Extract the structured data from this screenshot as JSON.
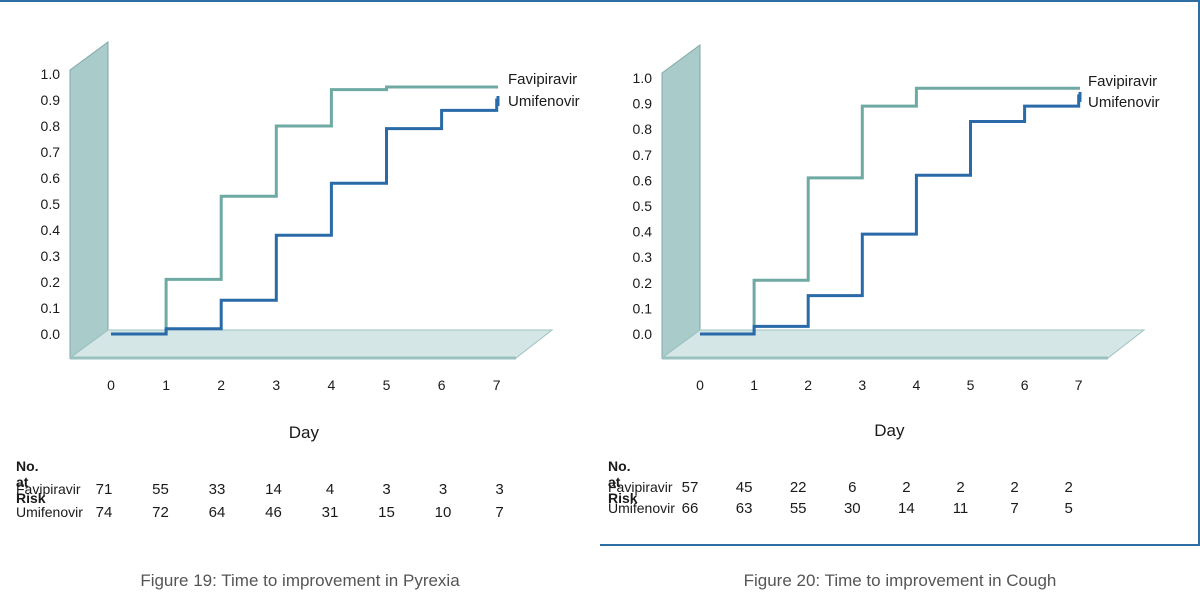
{
  "colors": {
    "favipiravir": "#6fa9a3",
    "umifenovir": "#2a6aa8",
    "wall": "#a9cbca",
    "floor": "#d4e6e6",
    "frame": "#2f6ea3"
  },
  "chart_data": [
    {
      "type": "line",
      "step": true,
      "caption": "Figure 19: Time to improvement in Pyrexia",
      "xlabel": "Day",
      "x_ticks": [
        "0",
        "1",
        "2",
        "3",
        "4",
        "5",
        "6",
        "7"
      ],
      "y_ticks": [
        "0.0",
        "0.1",
        "0.2",
        "0.3",
        "0.4",
        "0.5",
        "0.6",
        "0.7",
        "0.8",
        "0.9",
        "1.0"
      ],
      "xlim": [
        0,
        7
      ],
      "ylim": [
        0,
        1.0
      ],
      "series": [
        {
          "name": "Favipiravir",
          "x": [
            0,
            1,
            2,
            3,
            4,
            5,
            6,
            7
          ],
          "y": [
            0,
            0.21,
            0.53,
            0.8,
            0.94,
            0.95,
            0.95,
            0.95
          ]
        },
        {
          "name": "Umifenovir",
          "x": [
            0,
            1,
            2,
            3,
            4,
            5,
            6,
            7
          ],
          "y": [
            0,
            0.02,
            0.13,
            0.38,
            0.58,
            0.79,
            0.86,
            0.9
          ]
        }
      ],
      "risk_table": {
        "title": "No. at Risk",
        "rows": [
          {
            "name": "Favipiravir",
            "values": [
              "71",
              "55",
              "33",
              "14",
              "4",
              "3",
              "3",
              "3"
            ]
          },
          {
            "name": "Umifenovir",
            "values": [
              "74",
              "72",
              "64",
              "46",
              "31",
              "15",
              "10",
              "7"
            ]
          }
        ]
      }
    },
    {
      "type": "line",
      "step": true,
      "caption": "Figure 20: Time to improvement in Cough",
      "xlabel": "Day",
      "x_ticks": [
        "0",
        "1",
        "2",
        "3",
        "4",
        "5",
        "6",
        "7"
      ],
      "y_ticks": [
        "0.0",
        "0.1",
        "0.2",
        "0.3",
        "0.4",
        "0.5",
        "0.6",
        "0.7",
        "0.8",
        "0.9",
        "1.0"
      ],
      "xlim": [
        0,
        7
      ],
      "ylim": [
        0,
        1.0
      ],
      "series": [
        {
          "name": "Favipiravir",
          "x": [
            0,
            1,
            2,
            3,
            4,
            5,
            6,
            7
          ],
          "y": [
            0,
            0.21,
            0.61,
            0.89,
            0.96,
            0.96,
            0.96,
            0.96
          ]
        },
        {
          "name": "Umifenovir",
          "x": [
            0,
            1,
            2,
            3,
            4,
            5,
            6,
            7
          ],
          "y": [
            0,
            0.03,
            0.15,
            0.39,
            0.62,
            0.83,
            0.89,
            0.93
          ]
        }
      ],
      "risk_table": {
        "title": "No. at Risk",
        "rows": [
          {
            "name": "Favipiravir",
            "values": [
              "57",
              "45",
              "22",
              "6",
              "2",
              "2",
              "2",
              "2"
            ]
          },
          {
            "name": "Umifenovir",
            "values": [
              "66",
              "63",
              "55",
              "30",
              "14",
              "11",
              "7",
              "5"
            ]
          }
        ]
      }
    }
  ]
}
